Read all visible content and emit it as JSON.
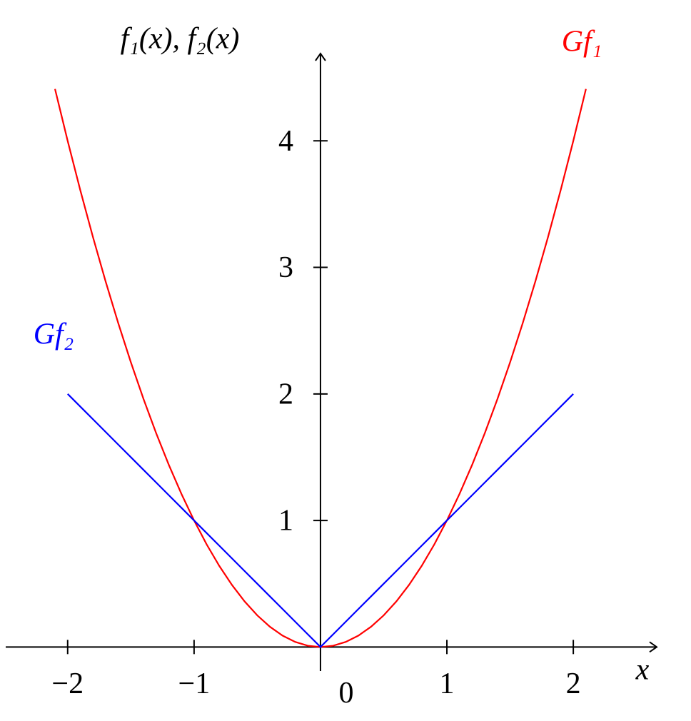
{
  "chart_data": {
    "type": "line",
    "x_label": "x",
    "y_label": "f₁(x), f₂(x)",
    "x": [
      -2.1,
      -2,
      -1.9,
      -1.8,
      -1.7,
      -1.6,
      -1.5,
      -1.4,
      -1.3,
      -1.2,
      -1.1,
      -1,
      -0.9,
      -0.8,
      -0.7,
      -0.6,
      -0.5,
      -0.4,
      -0.3,
      -0.2,
      -0.1,
      0,
      0.1,
      0.2,
      0.3,
      0.4,
      0.5,
      0.6,
      0.7,
      0.8,
      0.9,
      1,
      1.1,
      1.2,
      1.3,
      1.4,
      1.5,
      1.6,
      1.7,
      1.8,
      1.9,
      2,
      2.1
    ],
    "series": [
      {
        "name": "Gf₁",
        "color": "#ff0000",
        "values": [
          4.41,
          4,
          3.61,
          3.24,
          2.89,
          2.56,
          2.25,
          1.96,
          1.69,
          1.44,
          1.21,
          1,
          0.81,
          0.64,
          0.49,
          0.36,
          0.25,
          0.16,
          0.09,
          0.04,
          0.01,
          0,
          0.01,
          0.04,
          0.09,
          0.16,
          0.25,
          0.36,
          0.49,
          0.64,
          0.81,
          1,
          1.21,
          1.44,
          1.69,
          1.96,
          2.25,
          2.56,
          2.89,
          3.24,
          3.61,
          4,
          4.41
        ]
      },
      {
        "name": "Gf₂",
        "color": "#0000ff",
        "values": [
          null,
          2,
          1.9,
          1.8,
          1.7,
          1.6,
          1.5,
          1.4,
          1.3,
          1.2,
          1.1,
          1,
          0.9,
          0.8,
          0.7,
          0.6,
          0.5,
          0.4,
          0.3,
          0.2,
          0.1,
          0,
          0.1,
          0.2,
          0.3,
          0.4,
          0.5,
          0.6,
          0.7,
          0.8,
          0.9,
          1,
          1.1,
          1.2,
          1.3,
          1.4,
          1.5,
          1.6,
          1.7,
          1.8,
          1.9,
          2,
          null
        ]
      }
    ],
    "xlim": [
      -2.49,
      2.66
    ],
    "ylim": [
      -0.19,
      4.69
    ],
    "xticks": [
      {
        "value": -2,
        "label": "−2"
      },
      {
        "value": -1,
        "label": "−1"
      },
      0,
      1,
      2
    ],
    "yticks": [
      1,
      2,
      3,
      4
    ],
    "grid": false
  }
}
